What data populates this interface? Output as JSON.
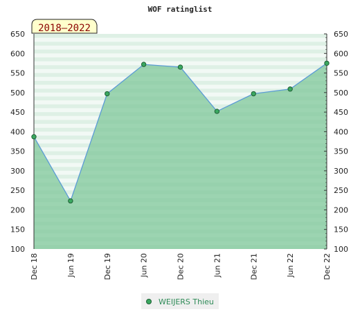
{
  "chart_data": {
    "type": "area",
    "title": "WOF ratinglist",
    "period_label": "2018–2022",
    "categories": [
      "Dec 18",
      "Jun 19",
      "Dec 19",
      "Jun 20",
      "Dec 20",
      "Jun 21",
      "Dec 21",
      "Jun 22",
      "Dec 22"
    ],
    "series": [
      {
        "name": "WEIJERS Thieu",
        "values": [
          387,
          223,
          497,
          572,
          565,
          452,
          497,
          509,
          575
        ]
      }
    ],
    "ylim": [
      100,
      650
    ],
    "yticks": [
      100,
      150,
      200,
      250,
      300,
      350,
      400,
      450,
      500,
      550,
      600,
      650
    ],
    "grid": "horizontal bands",
    "legend_position": "bottom-center",
    "colors": {
      "area_fill": "#7fc79a",
      "line": "#5b9bd5",
      "marker": "#3aa860",
      "band_light": "#e7f4ec",
      "band_dark": "#c2e4cf",
      "badge_fill": "#ffffcc",
      "badge_text": "#8b0000",
      "legend_text": "#2e8b57"
    }
  }
}
